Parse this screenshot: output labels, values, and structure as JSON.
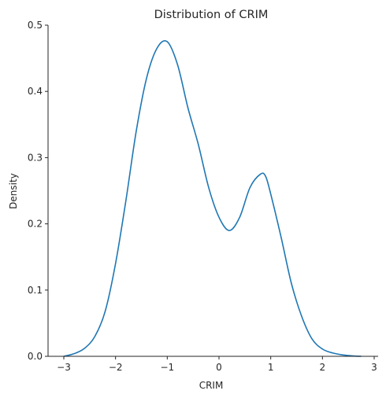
{
  "chart_data": {
    "type": "line",
    "title": "Distribution of CRIM",
    "xlabel": "CRIM",
    "ylabel": "Density",
    "xlim": [
      -3.0,
      3.0
    ],
    "ylim": [
      0.0,
      0.5
    ],
    "xticks": [
      "−3",
      "−2",
      "−1",
      "0",
      "1",
      "2",
      "3"
    ],
    "yticks": [
      "0.0",
      "0.1",
      "0.2",
      "0.3",
      "0.4",
      "0.5"
    ],
    "grid": false,
    "series": [
      {
        "color": "#1f77b4",
        "x": [
          -3.0,
          -2.8,
          -2.6,
          -2.4,
          -2.2,
          -2.0,
          -1.8,
          -1.6,
          -1.4,
          -1.2,
          -1.0,
          -0.8,
          -0.6,
          -0.4,
          -0.2,
          0.0,
          0.2,
          0.4,
          0.6,
          0.8,
          0.9,
          1.0,
          1.2,
          1.4,
          1.6,
          1.8,
          2.0,
          2.2,
          2.4,
          2.6,
          2.75
        ],
        "y": [
          0.0,
          0.004,
          0.012,
          0.03,
          0.068,
          0.14,
          0.235,
          0.34,
          0.42,
          0.465,
          0.475,
          0.44,
          0.375,
          0.32,
          0.255,
          0.21,
          0.19,
          0.21,
          0.255,
          0.275,
          0.272,
          0.245,
          0.18,
          0.11,
          0.06,
          0.026,
          0.011,
          0.005,
          0.002,
          0.0005,
          0.0
        ]
      }
    ]
  }
}
